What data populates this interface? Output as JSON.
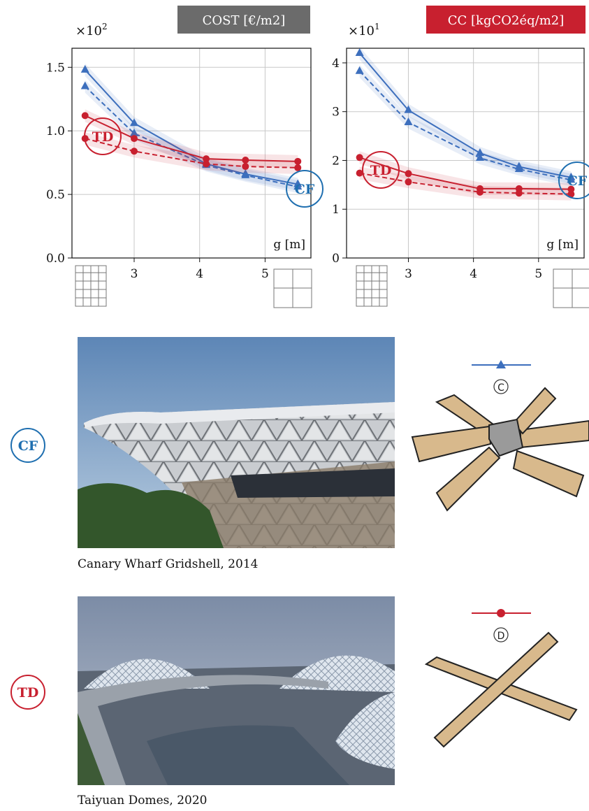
{
  "chart_data": [
    {
      "type": "line",
      "title": "COST [€/m2]",
      "title_color": "#6b6b6b",
      "scale_label": "×10",
      "scale_exponent": "2",
      "xlabel": "g [m]",
      "x": [
        2.25,
        3,
        4.1,
        4.7,
        5.5
      ],
      "xlim": [
        2.05,
        5.7
      ],
      "xticks": [
        3,
        4,
        5
      ],
      "ylim": [
        0,
        1.65
      ],
      "yticks": [
        {
          "value": 0,
          "label": "0.0"
        },
        0.5,
        {
          "value": 1,
          "label": "1.0"
        },
        1.5
      ],
      "grid": true,
      "series": [
        {
          "color": "#3d6fbd",
          "marker": "triangle",
          "dashed": false,
          "values": [
            1.48,
            1.06,
            0.74,
            0.66,
            0.58
          ]
        },
        {
          "color": "#3d6fbd",
          "marker": "triangle",
          "dashed": true,
          "values": [
            1.35,
            0.98,
            0.73,
            0.65,
            0.56
          ]
        },
        {
          "color": "#c8202f",
          "marker": "circle",
          "dashed": false,
          "values": [
            1.12,
            0.94,
            0.78,
            0.77,
            0.76
          ]
        },
        {
          "color": "#c8202f",
          "marker": "circle",
          "dashed": true,
          "values": [
            0.94,
            0.84,
            0.74,
            0.72,
            0.71
          ]
        }
      ],
      "annotations": [
        {
          "text": "TD",
          "color": "#c8202f"
        },
        {
          "text": "CF",
          "color": "#1f6fb0"
        }
      ]
    },
    {
      "type": "line",
      "title": "CC [kgCO2éq/m2]",
      "title_color": "#c8202f",
      "scale_label": "×10",
      "scale_exponent": "1",
      "xlabel": "g [m]",
      "x": [
        2.25,
        3,
        4.1,
        4.7,
        5.5
      ],
      "xlim": [
        2.05,
        5.7
      ],
      "xticks": [
        3,
        4,
        5
      ],
      "ylim": [
        0,
        4.3
      ],
      "yticks": [
        0,
        1,
        2,
        3,
        4
      ],
      "grid": true,
      "series": [
        {
          "color": "#3d6fbd",
          "marker": "triangle",
          "dashed": false,
          "values": [
            4.2,
            3.03,
            2.15,
            1.87,
            1.65
          ]
        },
        {
          "color": "#3d6fbd",
          "marker": "triangle",
          "dashed": true,
          "values": [
            3.83,
            2.78,
            2.05,
            1.82,
            1.6
          ]
        },
        {
          "color": "#c8202f",
          "marker": "circle",
          "dashed": false,
          "values": [
            2.06,
            1.73,
            1.42,
            1.42,
            1.41
          ]
        },
        {
          "color": "#c8202f",
          "marker": "circle",
          "dashed": true,
          "values": [
            1.74,
            1.56,
            1.35,
            1.33,
            1.31
          ]
        }
      ],
      "annotations": [
        {
          "text": "TD",
          "color": "#c8202f"
        },
        {
          "text": "CF",
          "color": "#1f6fb0"
        }
      ]
    }
  ],
  "projects": [
    {
      "code": "CF",
      "caption": "Canary Wharf Gridshell, 2014",
      "joint": "C"
    },
    {
      "code": "TD",
      "caption": "Taiyuan Domes, 2020",
      "joint": "D"
    }
  ]
}
